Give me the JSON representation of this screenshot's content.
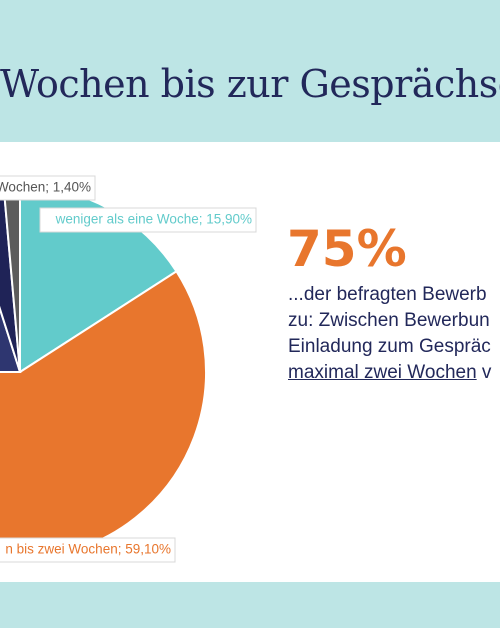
{
  "header": {
    "title": "Wochen bis zur Gesprächsei"
  },
  "chart_data": {
    "type": "pie",
    "values": [
      15.9,
      59.1,
      20.1,
      3.5,
      1.4
    ],
    "value_labels": [
      "weniger als eine Woche; 15,90%",
      "n bis zwei Wochen; 59,10%",
      null,
      null,
      "Wochen; 1,40%"
    ],
    "colors": [
      "#62cbcb",
      "#e8762d",
      "#2e3670",
      "#1f2357",
      "#5c5c5c"
    ],
    "start_angle": "top",
    "direction": "clockwise"
  },
  "callout": {
    "stat": "75%",
    "lines": [
      "...der befragten Bewerb",
      "zu: Zwischen Bewerbun",
      "Einladung zum Gespräc"
    ],
    "last_line": {
      "underlined": "maximal zwei Wochen",
      "rest": " v"
    }
  }
}
